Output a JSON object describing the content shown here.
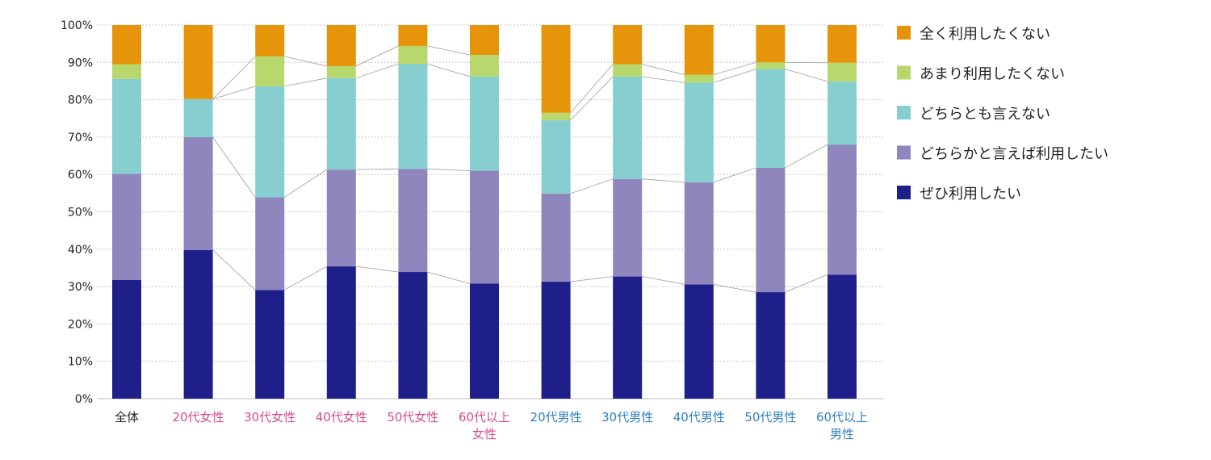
{
  "chart_data": {
    "type": "bar",
    "stacked": true,
    "ylim": [
      0,
      100
    ],
    "yticks": [
      "0%",
      "10%",
      "20%",
      "30%",
      "40%",
      "50%",
      "60%",
      "70%",
      "80%",
      "90%",
      "100%"
    ],
    "grid": true,
    "legend_position": "right",
    "categories": [
      {
        "lines": [
          "全体"
        ],
        "color": "#222222"
      },
      {
        "lines": [
          "20代女性"
        ],
        "color": "#d94b88"
      },
      {
        "lines": [
          "30代女性"
        ],
        "color": "#d94b88"
      },
      {
        "lines": [
          "40代女性"
        ],
        "color": "#d94b88"
      },
      {
        "lines": [
          "50代女性"
        ],
        "color": "#d94b88"
      },
      {
        "lines": [
          "60代以上",
          "女性"
        ],
        "color": "#d94b88"
      },
      {
        "lines": [
          "20代男性"
        ],
        "color": "#2f7fc1"
      },
      {
        "lines": [
          "30代男性"
        ],
        "color": "#2f7fc1"
      },
      {
        "lines": [
          "40代男性"
        ],
        "color": "#2f7fc1"
      },
      {
        "lines": [
          "50代男性"
        ],
        "color": "#2f7fc1"
      },
      {
        "lines": [
          "60代以上",
          "男性"
        ],
        "color": "#2f7fc1"
      }
    ],
    "series": [
      {
        "name": "ぜひ利用したい",
        "color": "#1e1f88",
        "values": [
          31.8,
          39.8,
          29.1,
          35.4,
          33.9,
          30.8,
          31.3,
          32.7,
          30.6,
          28.5,
          33.2
        ]
      },
      {
        "name": "どちらかと言えば利用したい",
        "color": "#8f86be",
        "values": [
          28.4,
          30.2,
          24.8,
          25.9,
          27.6,
          30.2,
          23.6,
          26.1,
          27.3,
          33.3,
          34.8
        ]
      },
      {
        "name": "どちらとも言えない",
        "color": "#86ced0",
        "values": [
          25.4,
          10.2,
          29.7,
          24.5,
          28.1,
          25.2,
          19.6,
          27.4,
          26.7,
          26.4,
          16.9
        ]
      },
      {
        "name": "あまり利用したくない",
        "color": "#b8d86d",
        "values": [
          3.9,
          0.0,
          8.0,
          3.2,
          4.8,
          5.8,
          2.0,
          3.3,
          2.1,
          1.8,
          5.0
        ]
      },
      {
        "name": "全く利用したくない",
        "color": "#e6950a",
        "values": [
          10.5,
          19.8,
          8.4,
          11.0,
          5.6,
          8.0,
          23.5,
          10.5,
          13.3,
          10.0,
          10.1
        ]
      }
    ],
    "legend_order": [
      4,
      3,
      2,
      1,
      0
    ]
  }
}
